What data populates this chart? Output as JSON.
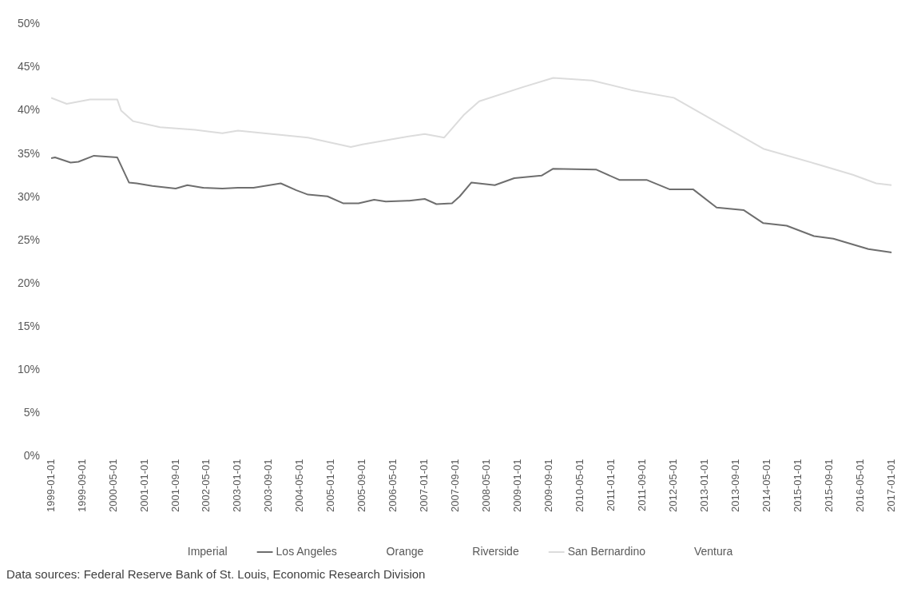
{
  "chart_data": {
    "type": "line",
    "annotations": [
      "Data sources: Federal Reserve Bank of St. Louis, Economic Research Division"
    ],
    "xlim": [
      "1999-01-01",
      "2017-01-01"
    ],
    "xticks": [
      "1999-01-01",
      "1999-09-01",
      "2000-05-01",
      "2001-01-01",
      "2001-09-01",
      "2002-05-01",
      "2003-01-01",
      "2003-09-01",
      "2004-05-01",
      "2005-01-01",
      "2005-09-01",
      "2006-05-01",
      "2007-01-01",
      "2007-09-01",
      "2008-05-01",
      "2009-01-01",
      "2009-09-01",
      "2010-05-01",
      "2011-01-01",
      "2011-09-01",
      "2012-05-01",
      "2013-01-01",
      "2013-09-01",
      "2014-05-01",
      "2015-01-01",
      "2015-09-01",
      "2016-05-01",
      "2017-01-01"
    ],
    "ylim": [
      0,
      50
    ],
    "yticks": [
      {
        "value": 0,
        "label": "0%"
      },
      {
        "value": 5,
        "label": "5%"
      },
      {
        "value": 10,
        "label": "10%"
      },
      {
        "value": 15,
        "label": "15%"
      },
      {
        "value": 20,
        "label": "20%"
      },
      {
        "value": 25,
        "label": "25%"
      },
      {
        "value": 30,
        "label": "30%"
      },
      {
        "value": 35,
        "label": "35%"
      },
      {
        "value": 40,
        "label": "40%"
      },
      {
        "value": 45,
        "label": "45%"
      },
      {
        "value": 50,
        "label": "50%"
      }
    ],
    "grid": false,
    "legend": "bottom",
    "marker": "none",
    "line_style": "solid",
    "series": [
      {
        "name": "Imperial"
      },
      {
        "name": "Los Angeles",
        "color": "#6e6e6e",
        "x": [
          "1999-01-01",
          "1999-02-01",
          "1999-06-01",
          "1999-08-01",
          "1999-12-01",
          "2000-06-01",
          "2000-09-01",
          "2000-11-01",
          "2001-03-01",
          "2001-09-01",
          "2001-12-01",
          "2002-04-01",
          "2002-09-01",
          "2003-01-01",
          "2003-05-01",
          "2003-12-01",
          "2004-04-01",
          "2004-07-01",
          "2004-12-01",
          "2005-04-01",
          "2005-08-01",
          "2005-12-01",
          "2006-03-01",
          "2006-09-01",
          "2007-01-01",
          "2007-04-01",
          "2007-08-01",
          "2007-10-01",
          "2008-01-01",
          "2008-07-01",
          "2008-12-01",
          "2009-07-01",
          "2009-10-01",
          "2010-09-01",
          "2011-03-01",
          "2011-10-01",
          "2012-04-01",
          "2012-10-01",
          "2013-04-01",
          "2013-11-01",
          "2014-04-01",
          "2014-10-01",
          "2015-05-01",
          "2015-10-01",
          "2016-07-01",
          "2017-01-01"
        ],
        "values": [
          34.5,
          34.6,
          34.0,
          34.1,
          34.8,
          34.6,
          31.7,
          31.6,
          31.3,
          31.0,
          31.4,
          31.1,
          31.0,
          31.1,
          31.1,
          31.6,
          30.8,
          30.3,
          30.1,
          29.3,
          29.3,
          29.7,
          29.5,
          29.6,
          29.8,
          29.2,
          29.3,
          30.1,
          31.7,
          31.4,
          32.2,
          32.5,
          33.3,
          33.2,
          32.0,
          32.0,
          30.9,
          30.9,
          28.8,
          28.5,
          27.0,
          26.7,
          25.5,
          25.2,
          24.0,
          23.6
        ]
      },
      {
        "name": "Orange"
      },
      {
        "name": "Riverside"
      },
      {
        "name": "San Bernardino",
        "color": "#dcdcdc",
        "x": [
          "1999-01-01",
          "1999-05-01",
          "1999-11-01",
          "2000-06-01",
          "2000-07-01",
          "2000-10-01",
          "2001-05-01",
          "2002-02-01",
          "2002-09-01",
          "2003-01-01",
          "2004-07-01",
          "2005-06-01",
          "2005-09-01",
          "2006-07-01",
          "2007-01-01",
          "2007-06-01",
          "2007-11-01",
          "2008-03-01",
          "2009-02-01",
          "2009-10-01",
          "2010-08-01",
          "2011-06-01",
          "2012-05-01",
          "2014-04-01",
          "2015-06-01",
          "2016-03-01",
          "2016-09-01",
          "2017-01-01"
        ],
        "values": [
          41.5,
          40.8,
          41.3,
          41.3,
          40.0,
          38.8,
          38.1,
          37.8,
          37.4,
          37.7,
          36.9,
          35.8,
          36.1,
          36.9,
          37.3,
          36.9,
          39.5,
          41.1,
          42.7,
          43.8,
          43.5,
          42.4,
          41.5,
          35.6,
          33.8,
          32.6,
          31.6,
          31.4
        ]
      },
      {
        "name": "Ventura"
      }
    ]
  }
}
